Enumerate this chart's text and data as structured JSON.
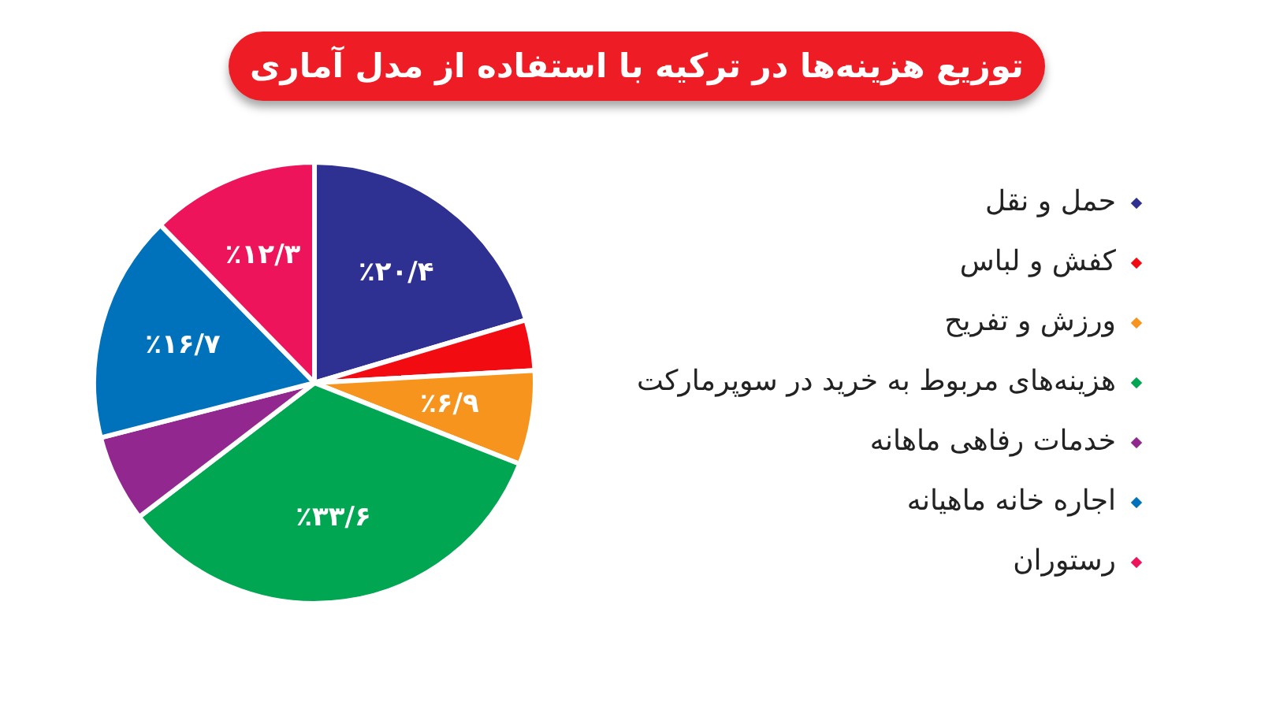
{
  "chart_data": {
    "type": "pie",
    "title": "توزیع هزینه‌ها در ترکیه با استفاده از مدل آماری",
    "categories": [
      "حمل و نقل",
      "کفش و لباس",
      "ورزش و تفریح",
      "هزینه‌های مربوط به خرید در سوپرمارکت",
      "خدمات رفاهی ماهانه",
      "اجاره خانه ماهیانه",
      "رستوران"
    ],
    "values": [
      20.4,
      3.7,
      6.9,
      33.6,
      6.4,
      16.7,
      12.3
    ],
    "colors": [
      "#2e3192",
      "#f20c12",
      "#f7941d",
      "#00a651",
      "#92278f",
      "#0072bc",
      "#ed145b"
    ],
    "value_labels": [
      "٪۲۰/۴",
      null,
      "٪۶/۹",
      "٪۳۳/۶",
      null,
      "٪۱۶/۷",
      "٪۱۲/۳"
    ],
    "legend": "right"
  }
}
